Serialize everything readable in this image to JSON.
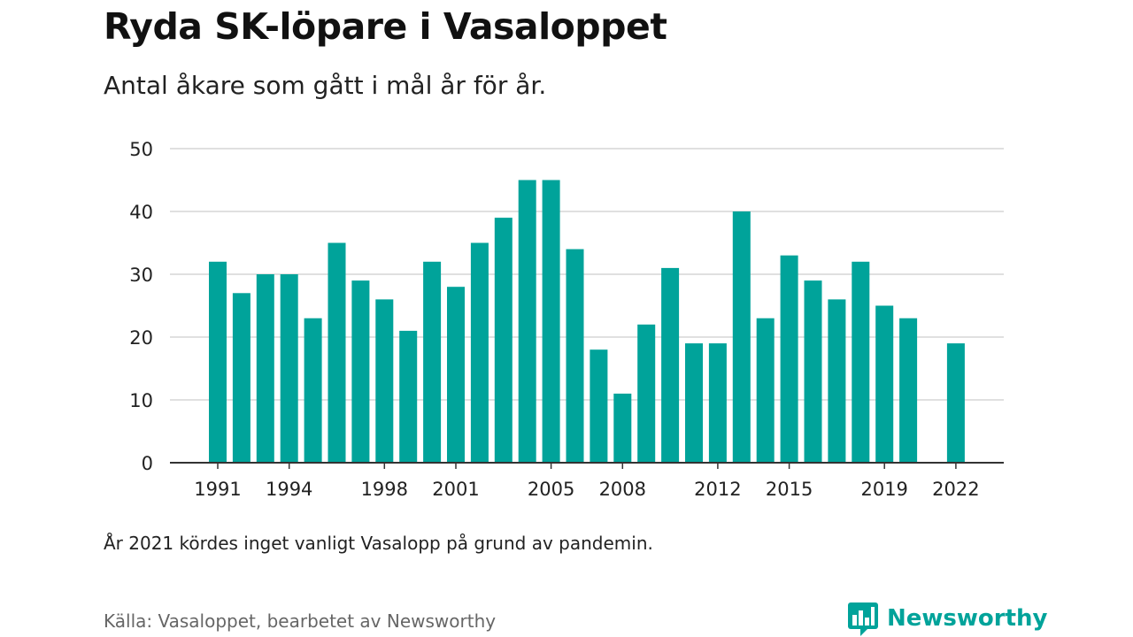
{
  "title": "Ryda SK-löpare i Vasaloppet",
  "subtitle": "Antal åkare som gått i mål år för år.",
  "note": "År 2021 kördes inget vanligt Vasalopp på grund av pandemin.",
  "source": "Källa: Vasaloppet, bearbetet av Newsworthy",
  "brand": {
    "name": "Newsworthy",
    "icon": "newsworthy-logo-icon",
    "color": "#00a39a"
  },
  "chart_data": {
    "type": "bar",
    "title": "Ryda SK-löpare i Vasaloppet",
    "subtitle": "Antal åkare som gått i mål år för år.",
    "xlabel": "",
    "ylabel": "",
    "ylim": [
      0,
      50
    ],
    "yticks": [
      0,
      10,
      20,
      30,
      40,
      50
    ],
    "xtick_labels": [
      "1991",
      "1994",
      "1998",
      "2001",
      "2005",
      "2008",
      "2012",
      "2015",
      "2019",
      "2022"
    ],
    "grid": "horizontal",
    "bar_color": "#00a39a",
    "categories": [
      "1991",
      "1992",
      "1993",
      "1994",
      "1995",
      "1996",
      "1997",
      "1998",
      "1999",
      "2000",
      "2001",
      "2002",
      "2003",
      "2004",
      "2005",
      "2006",
      "2007",
      "2008",
      "2009",
      "2010",
      "2011",
      "2012",
      "2013",
      "2014",
      "2015",
      "2016",
      "2017",
      "2018",
      "2019",
      "2020",
      "2021",
      "2022"
    ],
    "values": [
      32,
      27,
      30,
      30,
      23,
      35,
      29,
      26,
      21,
      32,
      28,
      35,
      39,
      45,
      45,
      34,
      18,
      11,
      22,
      31,
      19,
      19,
      40,
      23,
      33,
      29,
      26,
      32,
      25,
      23,
      null,
      19
    ]
  }
}
